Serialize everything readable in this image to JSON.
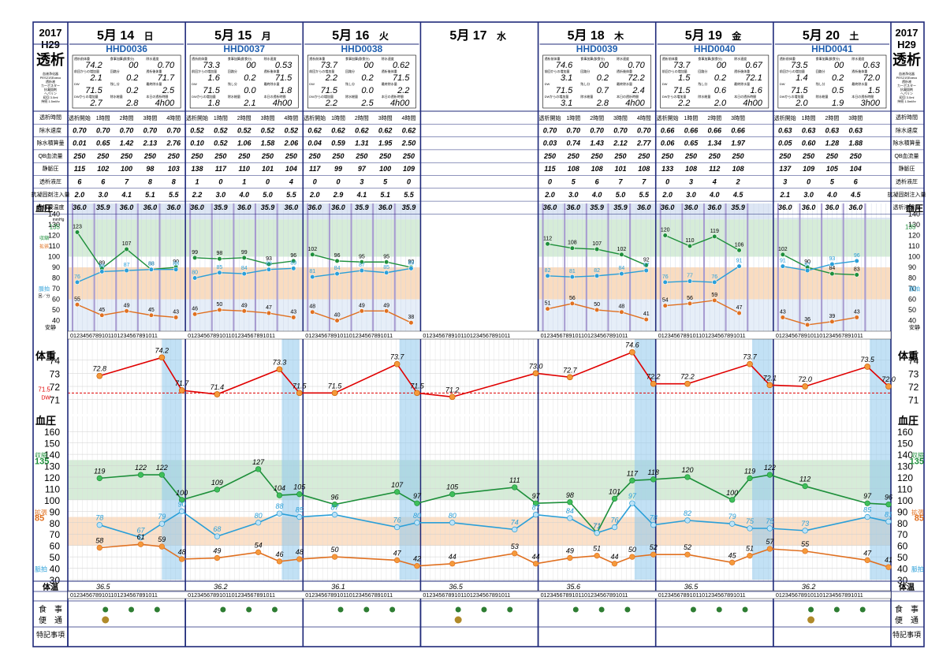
{
  "header": {
    "year": "2017",
    "era": "H29",
    "side_title": "透析",
    "side_notes": [
      "血液浄化器",
      "PES21SEαeco",
      "透析液",
      "カーボスター",
      "抗凝固剤",
      "ヘパリン",
      "初回 3.0ml",
      "持続 1.5ml/hr"
    ]
  },
  "days": [
    {
      "month": "5月",
      "day": "14",
      "dow": "日",
      "hhd": "HHD0036",
      "dialysis": true,
      "pre_weight": "74.2",
      "meal": "00",
      "rate": "0.70",
      "gain_prev": "2.1",
      "cum": "0.2",
      "post_weight": "71.7",
      "dw": "71.5",
      "remain": "0.2",
      "final_uf": "2.5",
      "gain_dw": "2.7",
      "uf_total": "2.8",
      "time": "4h00"
    },
    {
      "month": "5月",
      "day": "15",
      "dow": "月",
      "hhd": "HHD0037",
      "dialysis": true,
      "pre_weight": "73.3",
      "meal": "00",
      "rate": "0.53",
      "gain_prev": "1.6",
      "cum": "0.2",
      "post_weight": "71.5",
      "dw": "71.5",
      "remain": "0.0",
      "final_uf": "1.8",
      "gain_dw": "1.8",
      "uf_total": "2.1",
      "time": "4h00"
    },
    {
      "month": "5月",
      "day": "16",
      "dow": "火",
      "hhd": "HHD0038",
      "dialysis": true,
      "pre_weight": "73.7",
      "meal": "00",
      "rate": "0.62",
      "gain_prev": "2.2",
      "cum": "0.2",
      "post_weight": "71.5",
      "dw": "71.5",
      "remain": "0.0",
      "final_uf": "2.2",
      "gain_dw": "2.2",
      "uf_total": "2.5",
      "time": "4h00"
    },
    {
      "month": "5月",
      "day": "17",
      "dow": "水",
      "hhd": "",
      "dialysis": false
    },
    {
      "month": "5月",
      "day": "18",
      "dow": "木",
      "hhd": "HHD0039",
      "dialysis": true,
      "pre_weight": "74.6",
      "meal": "00",
      "rate": "0.70",
      "gain_prev": "3.1",
      "cum": "0.2",
      "post_weight": "72.2",
      "dw": "71.5",
      "remain": "0.7",
      "final_uf": "2.4",
      "gain_dw": "3.1",
      "uf_total": "2.8",
      "time": "4h00"
    },
    {
      "month": "5月",
      "day": "19",
      "dow": "金",
      "hhd": "HHD0040",
      "dialysis": true,
      "pre_weight": "73.7",
      "meal": "00",
      "rate": "0.67",
      "gain_prev": "1.5",
      "cum": "0.2",
      "post_weight": "72.1",
      "dw": "71.5",
      "remain": "0.6",
      "final_uf": "1.6",
      "gain_dw": "2.2",
      "uf_total": "2.0",
      "time": "4h00"
    },
    {
      "month": "5月",
      "day": "20",
      "dow": "土",
      "hhd": "HHD0041",
      "dialysis": true,
      "pre_weight": "73.5",
      "meal": "00",
      "rate": "0.63",
      "gain_prev": "1.4",
      "cum": "0.2",
      "post_weight": "72.0",
      "dw": "71.5",
      "remain": "0.5",
      "final_uf": "1.5",
      "gain_dw": "2.0",
      "uf_total": "1.9",
      "time": "3h00"
    }
  ],
  "summary_labels": [
    "透析前体重",
    "食事加算(飲食分)",
    "除水速度",
    "前回からの増加量",
    "回路分",
    "透析後体重",
    "DW",
    "残し分",
    "最終除水量",
    "DWからの増加量",
    "除水総量",
    "本日の透析時間"
  ],
  "row_labels": [
    "透析時間",
    "除水速度",
    "除水積算量",
    "QB血流量",
    "静脈圧",
    "透析液圧",
    "抗凝固剤注入量",
    "透析液温度"
  ],
  "hour_headers": [
    [
      "透析開始",
      "1時間",
      "2時間",
      "3時間",
      "4時間"
    ],
    [
      "透析開始",
      "1時間",
      "2時間",
      "3時間",
      "4時間"
    ],
    [
      "透析開始",
      "1時間",
      "2時間",
      "3時間",
      "4時間"
    ],
    [],
    [
      "透析開始",
      "1時間",
      "2時間",
      "3時間",
      "4時間"
    ],
    [
      "透析開始",
      "1時間",
      "2時間",
      "3時間"
    ],
    [
      "透析開始",
      "1時間",
      "2時間",
      "3時間"
    ]
  ],
  "table_values": [
    [
      [
        "0.70",
        "0.70",
        "0.70",
        "0.70",
        "0.70"
      ],
      [
        "0.01",
        "0.65",
        "1.42",
        "2.13",
        "2.76"
      ],
      [
        "250",
        "250",
        "250",
        "250",
        "250"
      ],
      [
        "115",
        "102",
        "100",
        "98",
        "103"
      ],
      [
        "6",
        "6",
        "7",
        "8",
        "8"
      ],
      [
        "2.0",
        "3.0",
        "4.1",
        "5.1",
        "5.5"
      ],
      [
        "36.0",
        "35.9",
        "36.0",
        "36.0",
        "36.0"
      ]
    ],
    [
      [
        "0.52",
        "0.52",
        "0.52",
        "0.52",
        "0.52"
      ],
      [
        "0.10",
        "0.52",
        "1.06",
        "1.58",
        "2.06"
      ],
      [
        "250",
        "250",
        "250",
        "250",
        "250"
      ],
      [
        "138",
        "117",
        "110",
        "101",
        "104"
      ],
      [
        "1",
        "0",
        "1",
        "0",
        "4"
      ],
      [
        "2.2",
        "3.0",
        "4.0",
        "5.0",
        "5.5"
      ],
      [
        "36.0",
        "35.9",
        "36.0",
        "35.9",
        "36.0"
      ]
    ],
    [
      [
        "0.62",
        "0.62",
        "0.62",
        "0.62",
        "0.62"
      ],
      [
        "0.04",
        "0.59",
        "1.31",
        "1.95",
        "2.50"
      ],
      [
        "250",
        "250",
        "250",
        "250",
        "250"
      ],
      [
        "117",
        "99",
        "97",
        "100",
        "109"
      ],
      [
        "0",
        "0",
        "3",
        "5",
        "0"
      ],
      [
        "2.0",
        "2.9",
        "4.1",
        "5.1",
        "5.5"
      ],
      [
        "36.0",
        "36.0",
        "35.9",
        "36.0",
        "35.9"
      ]
    ],
    [],
    [
      [
        "0.70",
        "0.70",
        "0.70",
        "0.70",
        "0.70"
      ],
      [
        "0.03",
        "0.74",
        "1.43",
        "2.12",
        "2.77"
      ],
      [
        "250",
        "250",
        "250",
        "250",
        "250"
      ],
      [
        "115",
        "108",
        "108",
        "101",
        "108"
      ],
      [
        "0",
        "5",
        "6",
        "7",
        "7"
      ],
      [
        "2.0",
        "3.0",
        "4.0",
        "5.0",
        "5.5"
      ],
      [
        "36.0",
        "36.0",
        "35.9",
        "35.9",
        "36.0"
      ]
    ],
    [
      [
        "0.66",
        "0.66",
        "0.66",
        "0.66"
      ],
      [
        "0.06",
        "0.65",
        "1.34",
        "1.97"
      ],
      [
        "250",
        "250",
        "250",
        "250"
      ],
      [
        "133",
        "108",
        "112",
        "108"
      ],
      [
        "0",
        "3",
        "4",
        "2"
      ],
      [
        "2.0",
        "3.0",
        "4.0",
        "4.5"
      ],
      [
        "36.0",
        "36.0",
        "36.0",
        "35.9"
      ]
    ],
    [
      [
        "0.63",
        "0.63",
        "0.63",
        "0.63"
      ],
      [
        "0.05",
        "0.60",
        "1.28",
        "1.88"
      ],
      [
        "250",
        "250",
        "250",
        "250"
      ],
      [
        "137",
        "109",
        "105",
        "104"
      ],
      [
        "3",
        "0",
        "5",
        "6"
      ],
      [
        "2.1",
        "3.0",
        "4.0",
        "4.5"
      ],
      [
        "36.0",
        "36.0",
        "36.0",
        "36.0"
      ]
    ]
  ],
  "sections": {
    "bp_left": "血圧",
    "bp_unit": "mmHg",
    "systolic": "収縮",
    "diastolic": "拡張",
    "pulse": "脈拍",
    "pulse_unit": "回／分",
    "weight": "体重",
    "dw_label": "DW",
    "temp": "体温",
    "meal": "食　事",
    "stool": "便　通",
    "notes": "特記事項",
    "axis_dw": "71.5",
    "axis_135": "135",
    "axis_85": "85",
    "rest_label": "安静"
  },
  "chart_data": [
    {
      "type": "line",
      "title": "透析中血圧",
      "ylim": [
        30,
        150
      ],
      "intradialytic": [
        {
          "day": "14",
          "systolic": [
            123,
            89,
            107,
            88,
            90
          ],
          "diastolic": [
            55,
            45,
            49,
            45,
            43
          ],
          "pulse": [
            76,
            86,
            87,
            88,
            88
          ]
        },
        {
          "day": "15",
          "systolic": [
            99,
            98,
            99,
            93,
            96
          ],
          "diastolic": [
            46,
            50,
            49,
            47,
            43
          ],
          "pulse": [
            80,
            85,
            84,
            88,
            89
          ]
        },
        {
          "day": "16",
          "systolic": [
            102,
            96,
            95,
            95,
            90
          ],
          "diastolic": [
            48,
            40,
            49,
            49,
            38
          ],
          "pulse": [
            81,
            84,
            87,
            85,
            89
          ]
        },
        {
          "day": "18",
          "systolic": [
            112,
            108,
            107,
            102,
            92
          ],
          "diastolic": [
            51,
            56,
            50,
            48,
            41
          ],
          "pulse": [
            82,
            81,
            82,
            84,
            87
          ]
        },
        {
          "day": "19",
          "systolic": [
            120,
            110,
            119,
            106
          ],
          "diastolic": [
            54,
            56,
            59,
            47
          ],
          "pulse": [
            76,
            77,
            76,
            91
          ]
        },
        {
          "day": "20",
          "systolic": [
            102,
            90,
            84,
            83
          ],
          "diastolic": [
            43,
            36,
            39,
            43
          ],
          "pulse": [
            91,
            87,
            93,
            96
          ]
        }
      ]
    },
    {
      "type": "line",
      "title": "体重",
      "ylim": [
        70.5,
        75
      ],
      "dw": 71.5,
      "points": [
        72.8,
        74.2,
        71.7,
        71.4,
        73.3,
        71.5,
        71.5,
        73.7,
        71.5,
        71.2,
        73.0,
        72.7,
        74.6,
        72.2,
        72.2,
        73.7,
        72.1,
        72.0,
        73.5,
        72.0
      ]
    },
    {
      "type": "line",
      "title": "血圧",
      "ylim": [
        30,
        165
      ],
      "series": [
        {
          "name": "収縮",
          "values": [
            119,
            122,
            122,
            100,
            109,
            127,
            104,
            105,
            96,
            107,
            97,
            105,
            111,
            97,
            98,
            71,
            101,
            117,
            118,
            120,
            100,
            119,
            122,
            112,
            97,
            96
          ]
        },
        {
          "name": "脈拍",
          "values": [
            78,
            67,
            79,
            90,
            68,
            80,
            88,
            85,
            87,
            76,
            80,
            80,
            74,
            87,
            84,
            71,
            76,
            97,
            78,
            82,
            79,
            75,
            75,
            73,
            85,
            81
          ]
        },
        {
          "name": "拡張",
          "values": [
            58,
            61,
            59,
            48,
            49,
            54,
            46,
            48,
            50,
            47,
            42,
            44,
            53,
            44,
            49,
            51,
            44,
            50,
            52,
            52,
            45,
            51,
            57,
            55,
            47,
            41
          ]
        }
      ]
    }
  ],
  "temperatures": [
    "36.5",
    "36.2",
    "36.1",
    "36.5",
    "35.6",
    "36.5",
    "36.2"
  ]
}
